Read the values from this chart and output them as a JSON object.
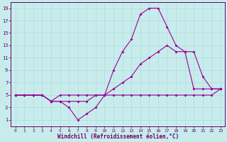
{
  "xlabel": "Windchill (Refroidissement éolien,°C)",
  "bg_color": "#c8ecec",
  "line_color": "#990099",
  "grid_color": "#b0dcdc",
  "axis_color": "#660066",
  "tick_color": "#660066",
  "xlim": [
    -0.5,
    23.5
  ],
  "ylim": [
    0,
    20
  ],
  "xticks": [
    0,
    1,
    2,
    3,
    4,
    5,
    6,
    7,
    8,
    9,
    10,
    11,
    12,
    13,
    14,
    15,
    16,
    17,
    18,
    19,
    20,
    21,
    22,
    23
  ],
  "yticks": [
    1,
    3,
    5,
    7,
    9,
    11,
    13,
    15,
    17,
    19
  ],
  "series": [
    {
      "x": [
        0,
        1,
        2,
        3,
        4,
        5,
        6,
        7,
        8,
        9,
        10,
        11,
        12,
        13,
        14,
        15,
        16,
        17,
        18,
        19,
        20,
        21,
        22,
        23
      ],
      "y": [
        5,
        5,
        5,
        5,
        4,
        4,
        3,
        1,
        2,
        3,
        5,
        9,
        12,
        14,
        18,
        19,
        19,
        16,
        13,
        12,
        6,
        6,
        6,
        6
      ]
    },
    {
      "x": [
        0,
        1,
        2,
        3,
        4,
        5,
        6,
        7,
        8,
        9,
        10,
        11,
        12,
        13,
        14,
        15,
        16,
        17,
        18,
        19,
        20,
        21,
        22,
        23
      ],
      "y": [
        5,
        5,
        5,
        5,
        4,
        5,
        5,
        5,
        5,
        5,
        5,
        6,
        7,
        8,
        10,
        11,
        12,
        13,
        12,
        12,
        12,
        8,
        6,
        6
      ]
    },
    {
      "x": [
        0,
        1,
        2,
        3,
        4,
        5,
        6,
        7,
        8,
        9,
        10,
        11,
        12,
        13,
        14,
        15,
        16,
        17,
        18,
        19,
        20,
        21,
        22,
        23
      ],
      "y": [
        5,
        5,
        5,
        5,
        4,
        4,
        4,
        4,
        4,
        5,
        5,
        5,
        5,
        5,
        5,
        5,
        5,
        5,
        5,
        5,
        5,
        5,
        5,
        6
      ]
    }
  ]
}
